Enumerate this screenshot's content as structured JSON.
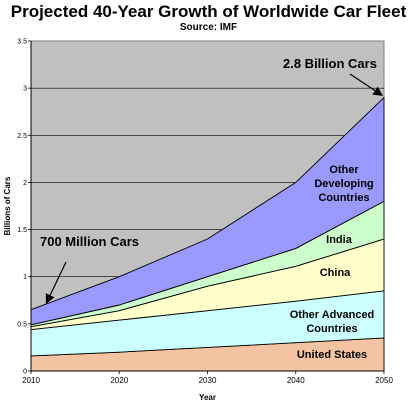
{
  "chart_data": {
    "type": "area",
    "stacked": true,
    "title": "Projected 40-Year Growth of Worldwide Car Fleet",
    "subtitle": "Source: IMF",
    "xlabel": "Year",
    "ylabel": "Billions of Cars",
    "x": [
      2010,
      2020,
      2030,
      2040,
      2050
    ],
    "xticks": [
      "2010",
      "2020",
      "2030",
      "2040",
      "2050"
    ],
    "yticks": [
      "0",
      "0.5",
      "1",
      "1.5",
      "2",
      "2.5",
      "3",
      "3.5"
    ],
    "ylim": [
      0,
      3.5
    ],
    "grid": true,
    "series": [
      {
        "name": "United States",
        "values": [
          0.16,
          0.2,
          0.25,
          0.3,
          0.35
        ],
        "color": "#f4c4a2"
      },
      {
        "name": "Other Advanced Countries",
        "values": [
          0.28,
          0.34,
          0.39,
          0.44,
          0.5
        ],
        "color": "#ccffff"
      },
      {
        "name": "China",
        "values": [
          0.03,
          0.1,
          0.26,
          0.37,
          0.55
        ],
        "color": "#ffffcc"
      },
      {
        "name": "India",
        "values": [
          0.02,
          0.06,
          0.1,
          0.19,
          0.4
        ],
        "color": "#ccffcc"
      },
      {
        "name": "Other Developing Countries",
        "values": [
          0.16,
          0.3,
          0.4,
          0.7,
          1.1
        ],
        "color": "#9999ff"
      }
    ],
    "annotations": [
      {
        "text": "700 Million Cars",
        "x": 2010,
        "y": 0.65
      },
      {
        "text": "2.8 Billion Cars",
        "x": 2050,
        "y": 2.9
      }
    ],
    "plot_background": "#c0c0c0"
  }
}
